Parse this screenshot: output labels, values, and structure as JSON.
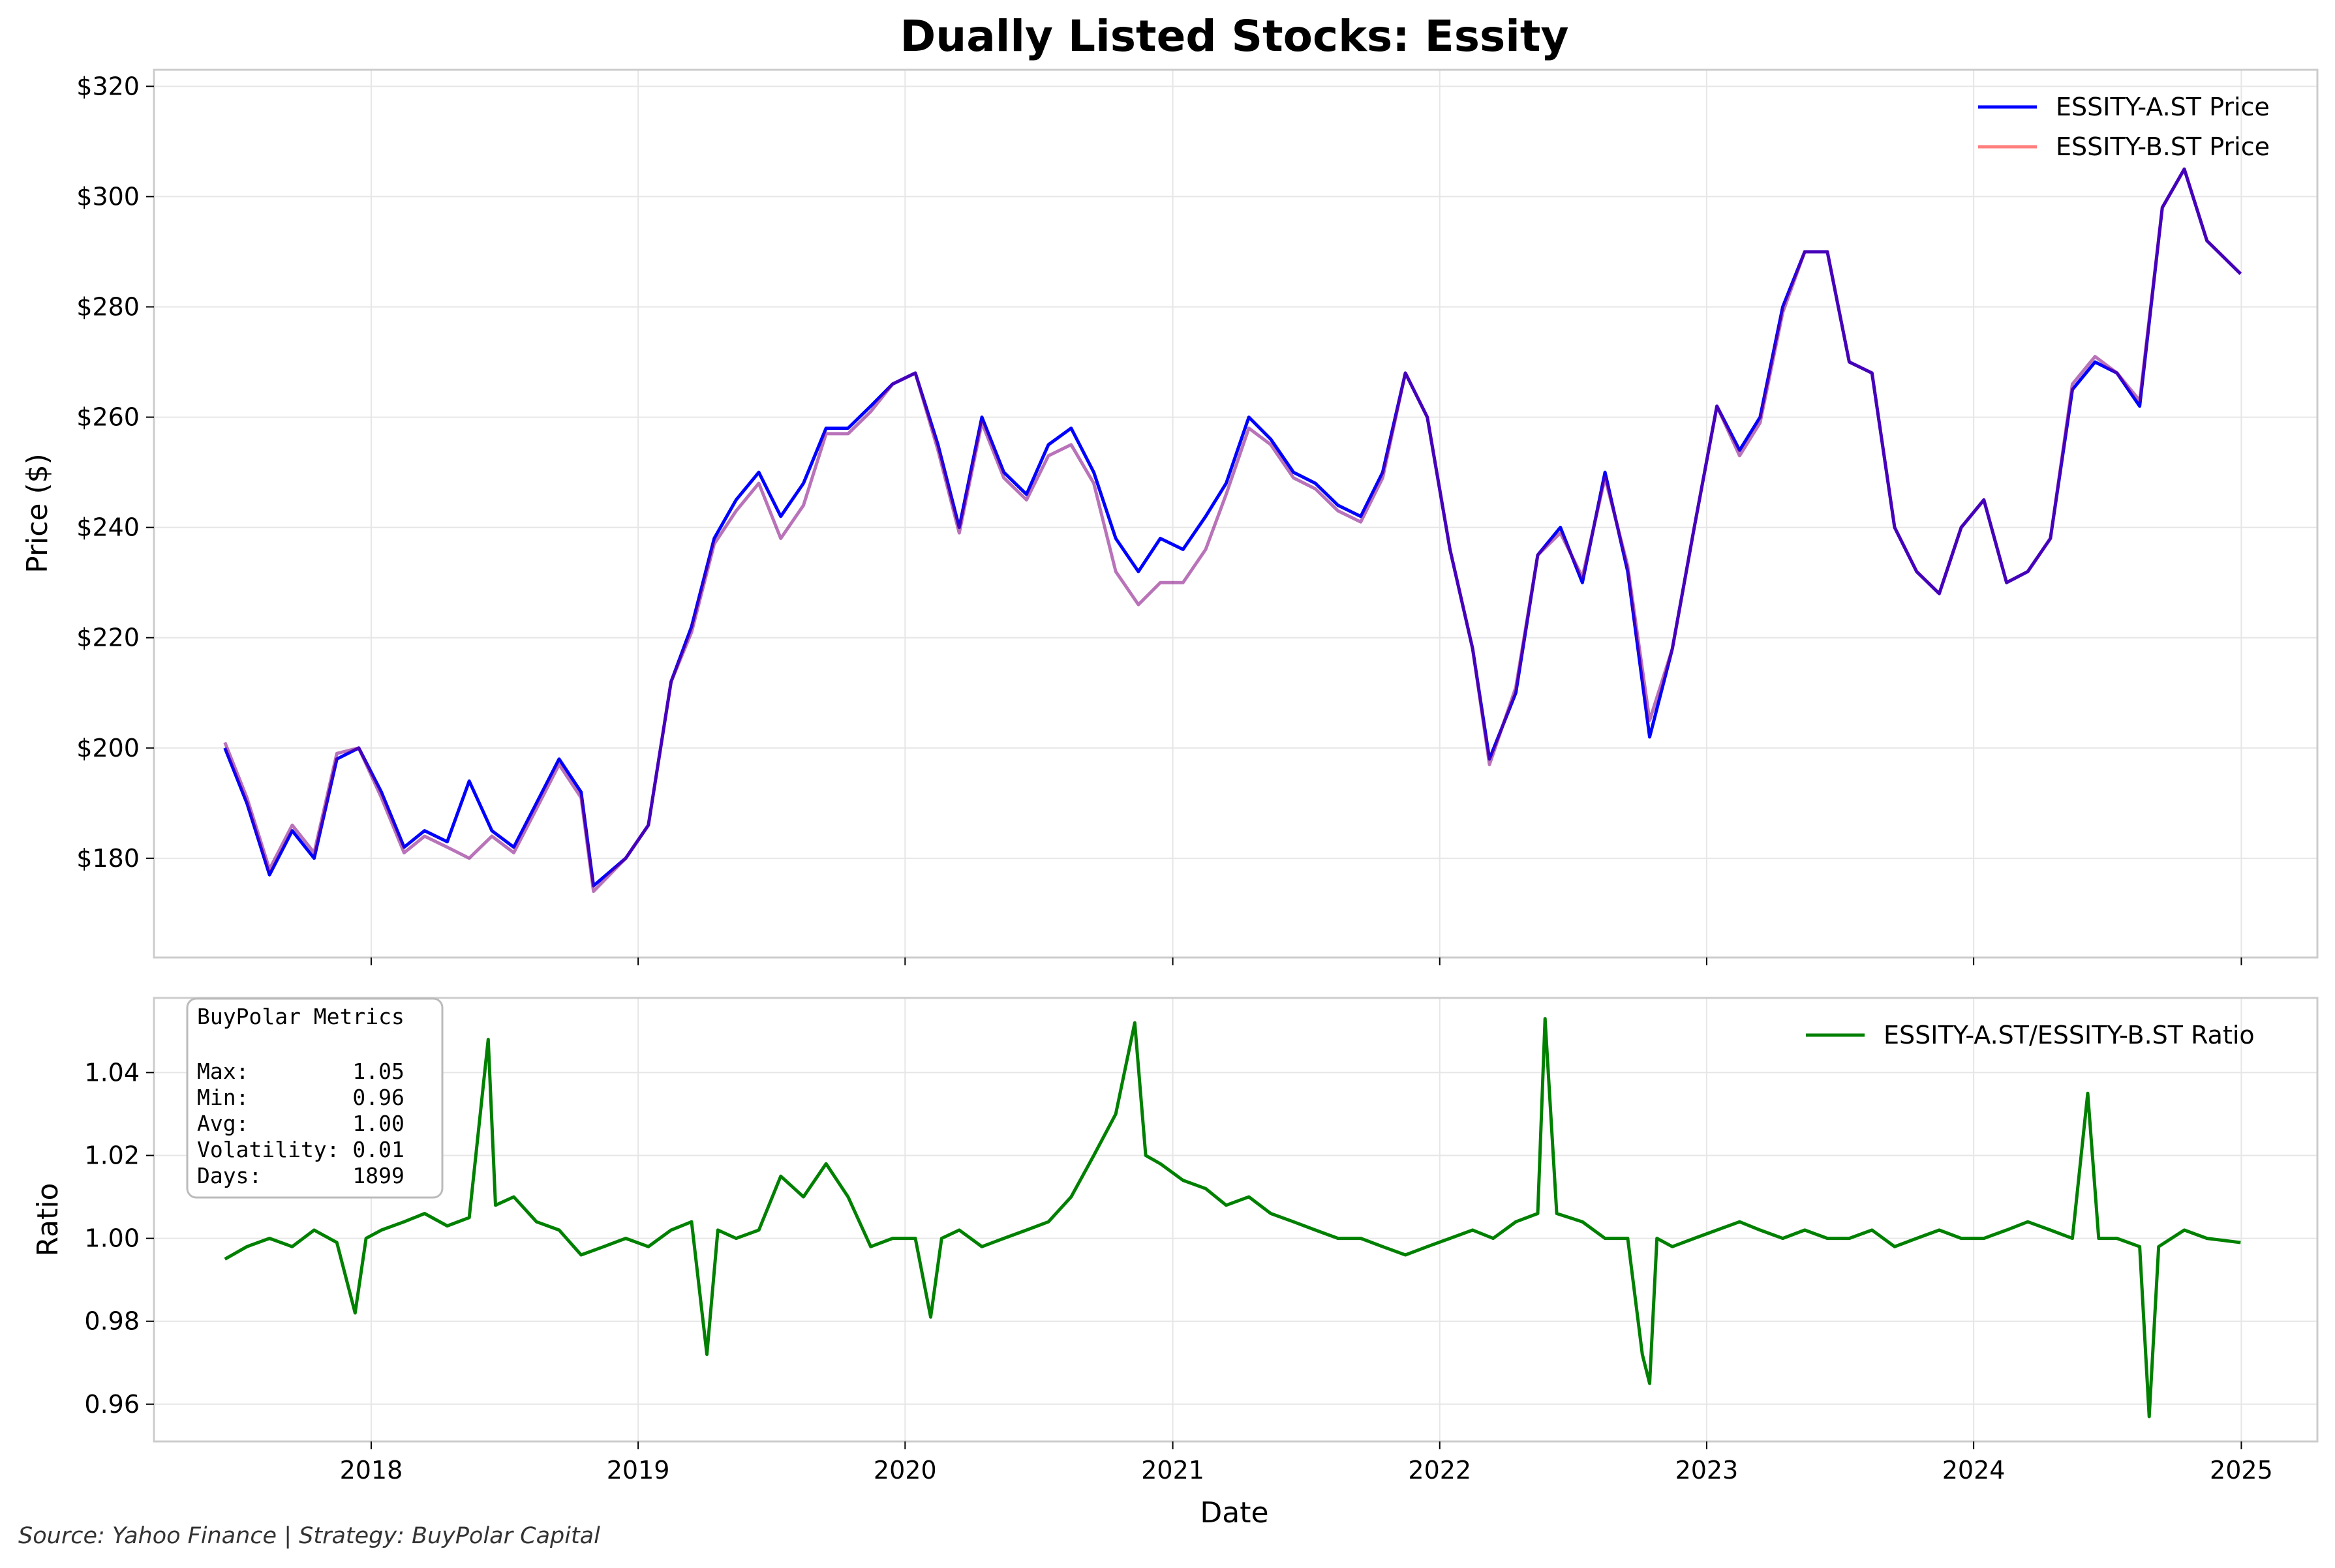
{
  "colors": {
    "series_a": "#0000ff",
    "series_b": "#ff7f7f",
    "overlap": "#800080",
    "ratio": "#008000",
    "grid": "#e6e6e6",
    "spine": "#cccccc"
  },
  "footer": {
    "source_text": "Source: Yahoo Finance | Strategy: BuyPolar Capital"
  },
  "metrics_box": {
    "title": "BuyPolar Metrics",
    "lines": [
      "Max:        1.05",
      "Min:        0.96",
      "Avg:        1.00",
      "Volatility: 0.01",
      "Days:       1899"
    ]
  },
  "chart_data": [
    {
      "type": "line",
      "title": "Dually Listed Stocks: Essity",
      "xlabel": "",
      "ylabel": "Price ($)",
      "xlim": [
        "2017-03-10",
        "2025-04-15"
      ],
      "ylim": [
        162,
        323
      ],
      "yticks": [
        180,
        200,
        220,
        240,
        260,
        280,
        300,
        320
      ],
      "ytick_labels": [
        "$180",
        "$200",
        "$220",
        "$240",
        "$260",
        "$280",
        "$300",
        "$320"
      ],
      "grid": true,
      "legend": "top-right",
      "series": [
        {
          "name": "ESSITY-A.ST Price",
          "color": "#0000ff",
          "x": [
            "2017-06-15",
            "2017-07-15",
            "2017-08-15",
            "2017-09-15",
            "2017-10-15",
            "2017-11-15",
            "2017-12-15",
            "2018-01-15",
            "2018-02-15",
            "2018-03-15",
            "2018-04-15",
            "2018-05-15",
            "2018-06-15",
            "2018-07-15",
            "2018-08-15",
            "2018-09-15",
            "2018-10-15",
            "2018-11-01",
            "2018-12-15",
            "2019-01-15",
            "2019-02-15",
            "2019-03-15",
            "2019-04-15",
            "2019-05-15",
            "2019-06-15",
            "2019-07-15",
            "2019-08-15",
            "2019-09-15",
            "2019-10-15",
            "2019-11-15",
            "2019-12-15",
            "2020-01-15",
            "2020-02-15",
            "2020-03-15",
            "2020-04-15",
            "2020-05-15",
            "2020-06-15",
            "2020-07-15",
            "2020-08-15",
            "2020-09-15",
            "2020-10-15",
            "2020-11-15",
            "2020-12-15",
            "2021-01-15",
            "2021-02-15",
            "2021-03-15",
            "2021-04-15",
            "2021-05-15",
            "2021-06-15",
            "2021-07-15",
            "2021-08-15",
            "2021-09-15",
            "2021-10-15",
            "2021-11-15",
            "2021-12-15",
            "2022-01-15",
            "2022-02-15",
            "2022-03-10",
            "2022-04-15",
            "2022-05-15",
            "2022-06-15",
            "2022-07-15",
            "2022-08-15",
            "2022-09-15",
            "2022-10-15",
            "2022-11-15",
            "2022-12-15",
            "2023-01-15",
            "2023-02-15",
            "2023-03-15",
            "2023-04-15",
            "2023-05-15",
            "2023-06-15",
            "2023-07-15",
            "2023-08-15",
            "2023-09-15",
            "2023-10-15",
            "2023-11-15",
            "2023-12-15",
            "2024-01-15",
            "2024-02-15",
            "2024-03-15",
            "2024-04-15",
            "2024-05-15",
            "2024-06-15",
            "2024-07-15",
            "2024-08-15",
            "2024-09-15",
            "2024-10-15",
            "2024-11-15",
            "2024-12-31"
          ],
          "values": [
            200,
            190,
            177,
            185,
            180,
            198,
            200,
            192,
            182,
            185,
            183,
            194,
            185,
            182,
            190,
            198,
            192,
            175,
            180,
            186,
            212,
            222,
            238,
            245,
            250,
            242,
            248,
            258,
            258,
            262,
            266,
            268,
            255,
            240,
            260,
            250,
            246,
            255,
            258,
            250,
            238,
            232,
            238,
            236,
            242,
            248,
            260,
            256,
            250,
            248,
            244,
            242,
            250,
            268,
            260,
            236,
            218,
            198,
            210,
            235,
            240,
            230,
            250,
            232,
            202,
            218,
            240,
            262,
            254,
            260,
            280,
            290,
            290,
            270,
            268,
            240,
            232,
            228,
            240,
            245,
            230,
            232,
            238,
            265,
            270,
            268,
            262,
            298,
            305,
            292,
            286
          ]
        },
        {
          "name": "ESSITY-B.ST Price",
          "color": "#ff7f7f",
          "x": [
            "2017-06-15",
            "2017-07-15",
            "2017-08-15",
            "2017-09-15",
            "2017-10-15",
            "2017-11-15",
            "2017-12-15",
            "2018-01-15",
            "2018-02-15",
            "2018-03-15",
            "2018-04-15",
            "2018-05-15",
            "2018-06-15",
            "2018-07-15",
            "2018-08-15",
            "2018-09-15",
            "2018-10-15",
            "2018-11-01",
            "2018-12-15",
            "2019-01-15",
            "2019-02-15",
            "2019-03-15",
            "2019-04-15",
            "2019-05-15",
            "2019-06-15",
            "2019-07-15",
            "2019-08-15",
            "2019-09-15",
            "2019-10-15",
            "2019-11-15",
            "2019-12-15",
            "2020-01-15",
            "2020-02-15",
            "2020-03-15",
            "2020-04-15",
            "2020-05-15",
            "2020-06-15",
            "2020-07-15",
            "2020-08-15",
            "2020-09-15",
            "2020-10-15",
            "2020-11-15",
            "2020-12-15",
            "2021-01-15",
            "2021-02-15",
            "2021-03-15",
            "2021-04-15",
            "2021-05-15",
            "2021-06-15",
            "2021-07-15",
            "2021-08-15",
            "2021-09-15",
            "2021-10-15",
            "2021-11-15",
            "2021-12-15",
            "2022-01-15",
            "2022-02-15",
            "2022-03-10",
            "2022-04-15",
            "2022-05-15",
            "2022-06-15",
            "2022-07-15",
            "2022-08-15",
            "2022-09-15",
            "2022-10-15",
            "2022-11-15",
            "2022-12-15",
            "2023-01-15",
            "2023-02-15",
            "2023-03-15",
            "2023-04-15",
            "2023-05-15",
            "2023-06-15",
            "2023-07-15",
            "2023-08-15",
            "2023-09-15",
            "2023-10-15",
            "2023-11-15",
            "2023-12-15",
            "2024-01-15",
            "2024-02-15",
            "2024-03-15",
            "2024-04-15",
            "2024-05-15",
            "2024-06-15",
            "2024-07-15",
            "2024-08-15",
            "2024-09-15",
            "2024-10-15",
            "2024-11-15",
            "2024-12-31"
          ],
          "values": [
            201,
            191,
            178,
            186,
            181,
            199,
            200,
            191,
            181,
            184,
            182,
            180,
            184,
            181,
            189,
            197,
            191,
            174,
            180,
            186,
            212,
            221,
            237,
            243,
            248,
            238,
            244,
            257,
            257,
            261,
            266,
            268,
            254,
            239,
            259,
            249,
            245,
            253,
            255,
            248,
            232,
            226,
            230,
            230,
            236,
            246,
            258,
            255,
            249,
            247,
            243,
            241,
            249,
            268,
            260,
            236,
            218,
            197,
            211,
            235,
            239,
            231,
            249,
            233,
            205,
            218,
            240,
            262,
            253,
            259,
            279,
            290,
            290,
            270,
            268,
            240,
            232,
            228,
            240,
            245,
            230,
            232,
            238,
            266,
            271,
            268,
            263,
            298,
            305,
            292,
            286
          ]
        }
      ]
    },
    {
      "type": "line",
      "title": "",
      "xlabel": "Date",
      "ylabel": "Ratio",
      "xlim": [
        "2017-03-10",
        "2025-04-15"
      ],
      "ylim": [
        0.951,
        1.058
      ],
      "yticks": [
        0.96,
        0.98,
        1.0,
        1.02,
        1.04
      ],
      "ytick_labels": [
        "0.96",
        "0.98",
        "1.00",
        "1.02",
        "1.04"
      ],
      "xticks": [
        "2018-01-01",
        "2019-01-01",
        "2020-01-01",
        "2021-01-01",
        "2022-01-01",
        "2023-01-01",
        "2024-01-01",
        "2025-01-01"
      ],
      "xtick_labels": [
        "2018",
        "2019",
        "2020",
        "2021",
        "2022",
        "2023",
        "2024",
        "2025"
      ],
      "grid": true,
      "legend": "top-right",
      "series": [
        {
          "name": "ESSITY-A.ST/ESSITY-B.ST Ratio",
          "color": "#008000",
          "x": [
            "2017-06-15",
            "2017-07-15",
            "2017-08-15",
            "2017-09-15",
            "2017-10-15",
            "2017-11-15",
            "2017-12-10",
            "2017-12-25",
            "2018-01-15",
            "2018-02-15",
            "2018-03-15",
            "2018-04-15",
            "2018-05-15",
            "2018-06-10",
            "2018-06-20",
            "2018-07-15",
            "2018-08-15",
            "2018-09-15",
            "2018-10-15",
            "2018-11-15",
            "2018-12-15",
            "2019-01-15",
            "2019-02-15",
            "2019-03-15",
            "2019-04-05",
            "2019-04-20",
            "2019-05-15",
            "2019-06-15",
            "2019-07-15",
            "2019-08-15",
            "2019-09-15",
            "2019-10-15",
            "2019-11-15",
            "2019-12-15",
            "2020-01-15",
            "2020-02-05",
            "2020-02-20",
            "2020-03-15",
            "2020-04-15",
            "2020-05-15",
            "2020-06-15",
            "2020-07-15",
            "2020-08-15",
            "2020-09-15",
            "2020-10-15",
            "2020-11-10",
            "2020-11-25",
            "2020-12-15",
            "2021-01-15",
            "2021-02-15",
            "2021-03-15",
            "2021-04-15",
            "2021-05-15",
            "2021-06-15",
            "2021-07-15",
            "2021-08-15",
            "2021-09-15",
            "2021-10-15",
            "2021-11-15",
            "2021-12-15",
            "2022-01-15",
            "2022-02-15",
            "2022-03-15",
            "2022-04-15",
            "2022-05-15",
            "2022-05-25",
            "2022-06-10",
            "2022-07-15",
            "2022-08-15",
            "2022-09-15",
            "2022-10-05",
            "2022-10-15",
            "2022-10-25",
            "2022-11-15",
            "2022-12-15",
            "2023-01-15",
            "2023-02-15",
            "2023-03-15",
            "2023-04-15",
            "2023-05-15",
            "2023-06-15",
            "2023-07-15",
            "2023-08-15",
            "2023-09-15",
            "2023-10-15",
            "2023-11-15",
            "2023-12-15",
            "2024-01-15",
            "2024-02-15",
            "2024-03-15",
            "2024-04-15",
            "2024-05-15",
            "2024-06-05",
            "2024-06-20",
            "2024-07-15",
            "2024-08-15",
            "2024-08-28",
            "2024-09-10",
            "2024-10-15",
            "2024-11-15",
            "2024-12-31"
          ],
          "values": [
            0.995,
            0.998,
            1.0,
            0.998,
            1.002,
            0.999,
            0.982,
            1.0,
            1.002,
            1.004,
            1.006,
            1.003,
            1.005,
            1.048,
            1.008,
            1.01,
            1.004,
            1.002,
            0.996,
            0.998,
            1.0,
            0.998,
            1.002,
            1.004,
            0.972,
            1.002,
            1.0,
            1.002,
            1.015,
            1.01,
            1.018,
            1.01,
            0.998,
            1.0,
            1.0,
            0.981,
            1.0,
            1.002,
            0.998,
            1.0,
            1.002,
            1.004,
            1.01,
            1.02,
            1.03,
            1.052,
            1.02,
            1.018,
            1.014,
            1.012,
            1.008,
            1.01,
            1.006,
            1.004,
            1.002,
            1.0,
            1.0,
            0.998,
            0.996,
            0.998,
            1.0,
            1.002,
            1.0,
            1.004,
            1.006,
            1.053,
            1.006,
            1.004,
            1.0,
            1.0,
            0.972,
            0.965,
            1.0,
            0.998,
            1.0,
            1.002,
            1.004,
            1.002,
            1.0,
            1.002,
            1.0,
            1.0,
            1.002,
            0.998,
            1.0,
            1.002,
            1.0,
            1.0,
            1.002,
            1.004,
            1.002,
            1.0,
            1.035,
            1.0,
            1.0,
            0.998,
            0.957,
            0.998,
            1.002,
            1.0,
            0.999
          ]
        }
      ]
    }
  ]
}
